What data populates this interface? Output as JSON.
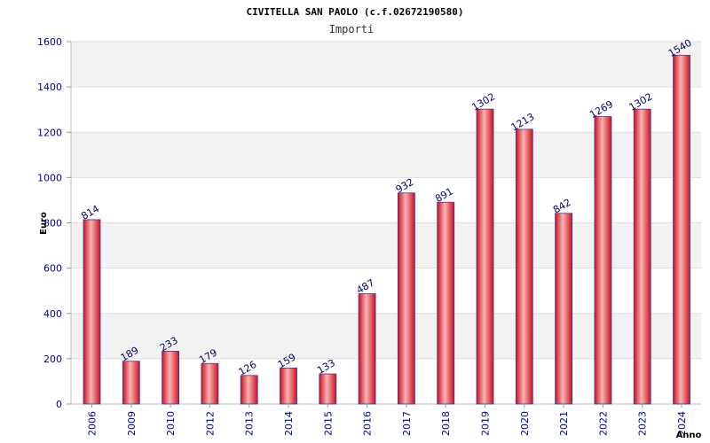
{
  "chart_data": {
    "type": "bar",
    "title": "CIVITELLA SAN PAOLO (c.f.02672190580)",
    "subtitle": "Importi",
    "xlabel": "Anno",
    "ylabel": "Euro",
    "categories": [
      "2006",
      "2009",
      "2010",
      "2012",
      "2013",
      "2014",
      "2015",
      "2016",
      "2017",
      "2018",
      "2019",
      "2020",
      "2021",
      "2022",
      "2023",
      "2024"
    ],
    "values": [
      814,
      189,
      233,
      179,
      126,
      159,
      133,
      487,
      932,
      891,
      1302,
      1213,
      842,
      1269,
      1302,
      1540
    ],
    "ylim": [
      0,
      1600
    ],
    "yticks": [
      0,
      200,
      400,
      600,
      800,
      1000,
      1200,
      1400,
      1600
    ],
    "grid": true,
    "legend": "none",
    "colors": {
      "bar_center": "#f7a9a9",
      "bar_edge": "#e01020",
      "bar_outline": "#3c3c8c",
      "band": "#f2f2f2",
      "gridline": "#dddddd",
      "tick_text": "#000099"
    }
  }
}
